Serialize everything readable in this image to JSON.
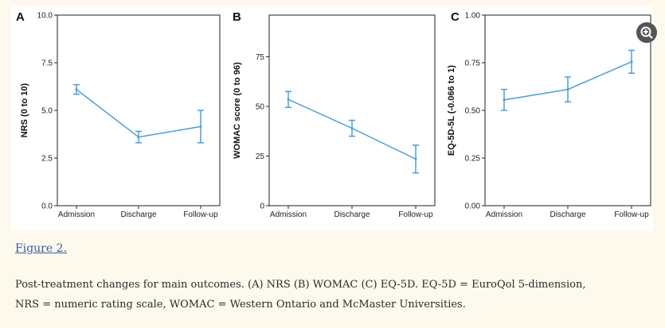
{
  "figure": {
    "link_text": "Figure 2.",
    "caption_line1": "Post-treatment changes for main outcomes. (A) NRS (B) WOMAC (C) EQ-5D. EQ-5D = EuroQol 5-dimension,",
    "caption_line2": "NRS = numeric rating scale, WOMAC = Western Ontario and McMaster Universities.",
    "zoom_icon": "zoom-in-icon"
  },
  "colors": {
    "line": "#4a9fd8",
    "axis": "#222222"
  },
  "chart_data": [
    {
      "panel": "A",
      "type": "line",
      "categories": [
        "Admission",
        "Discharge",
        "Follow-up"
      ],
      "values": [
        6.1,
        3.6,
        4.15
      ],
      "errors": [
        0.25,
        0.3,
        0.85
      ],
      "ylabel": "NRS (0 to 10)",
      "ylim": [
        0,
        10
      ],
      "yticks": [
        0,
        2.5,
        5,
        7.5,
        10
      ],
      "yticklabels": [
        "0.0",
        "2.5",
        "5.0",
        "7.5",
        "10.0"
      ],
      "grid": false
    },
    {
      "panel": "B",
      "type": "line",
      "categories": [
        "Admission",
        "Discharge",
        "Follow-up"
      ],
      "values": [
        53.5,
        39,
        23.5
      ],
      "errors": [
        4,
        4,
        7
      ],
      "ylabel": "WOMAC score (0 to 96)",
      "ylim": [
        0,
        96
      ],
      "yticks": [
        0,
        25,
        50,
        75
      ],
      "yticklabels": [
        "0",
        "25",
        "50",
        "75"
      ],
      "grid": false
    },
    {
      "panel": "C",
      "type": "line",
      "categories": [
        "Admission",
        "Discharge",
        "Follow-up"
      ],
      "values": [
        0.555,
        0.61,
        0.755
      ],
      "errors": [
        0.055,
        0.065,
        0.06
      ],
      "ylabel": "EQ-5D-5L (-0.066 to 1)",
      "ylim": [
        0,
        1
      ],
      "yticks": [
        0,
        0.25,
        0.5,
        0.75,
        1
      ],
      "yticklabels": [
        "0.00",
        "0.25",
        "0.50",
        "0.75",
        "1.00"
      ],
      "grid": false
    }
  ]
}
